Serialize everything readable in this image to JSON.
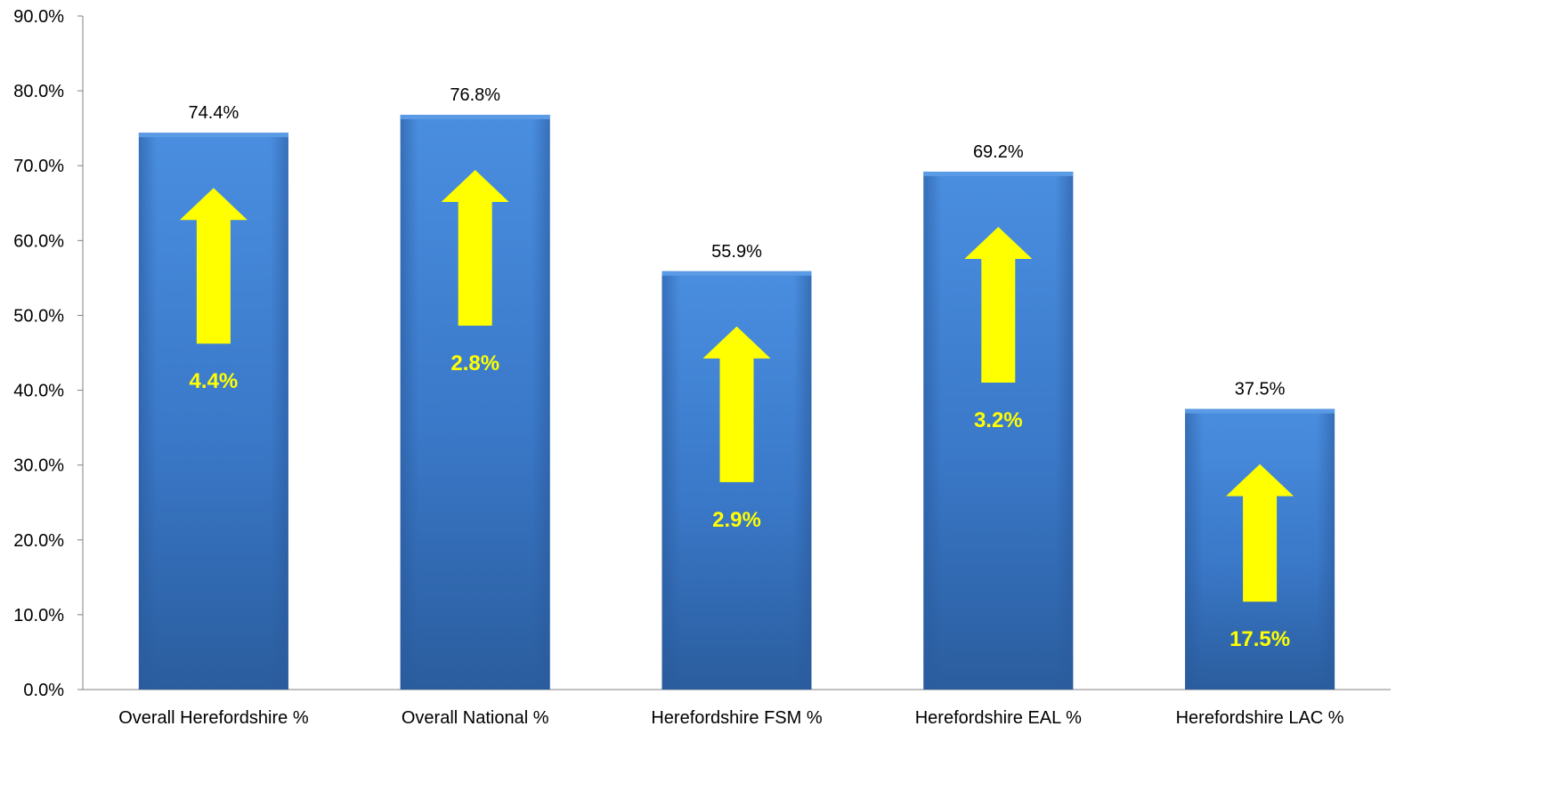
{
  "chart_data": {
    "type": "bar",
    "title": "",
    "xlabel": "",
    "ylabel": "",
    "ylim": [
      0,
      90
    ],
    "y_ticks": [
      "0.0%",
      "10.0%",
      "20.0%",
      "30.0%",
      "40.0%",
      "50.0%",
      "60.0%",
      "70.0%",
      "80.0%",
      "90.0%"
    ],
    "categories": [
      "Overall Herefordshire %",
      "Overall National %",
      "Herefordshire FSM %",
      "Herefordshire EAL %",
      "Herefordshire LAC %"
    ],
    "values": [
      74.4,
      76.8,
      55.9,
      69.2,
      37.5
    ],
    "value_labels": [
      "74.4%",
      "76.8%",
      "55.9%",
      "69.2%",
      "37.5%"
    ],
    "change_labels": [
      "4.4%",
      "2.8%",
      "2.9%",
      "3.2%",
      "17.5%"
    ],
    "change_direction": [
      "up",
      "up",
      "up",
      "up",
      "up"
    ],
    "grid": false,
    "legend": "none",
    "colors": {
      "bar": "#3f7ccc",
      "bar_dark": "#2a5a9c",
      "arrow": "#ffff00",
      "change_text": "#ffff00",
      "axis": "#808080",
      "text": "#000000"
    }
  }
}
